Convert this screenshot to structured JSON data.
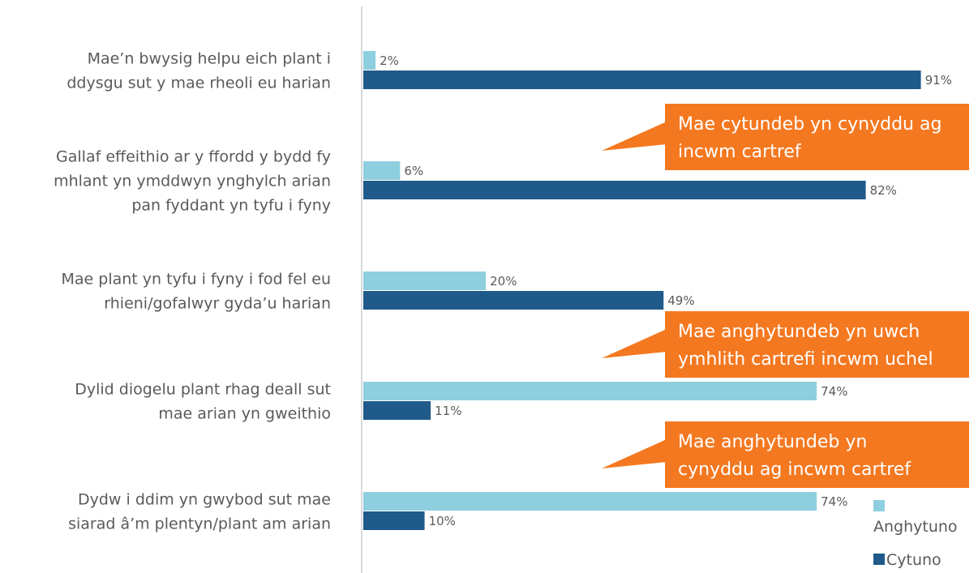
{
  "chart_data": {
    "type": "bar",
    "orientation": "horizontal",
    "categories": [
      [
        "Mae’n bwysig helpu eich plant i",
        "ddysgu sut y mae rheoli eu harian"
      ],
      [
        "Gallaf effeithio ar y ffordd y bydd fy",
        "mhlant yn ymddwyn ynghylch arian",
        "pan fyddant yn tyfu i fyny"
      ],
      [
        "Mae plant yn tyfu i fyny i fod fel eu",
        "rhieni/gofalwyr gyda’u harian"
      ],
      [
        "Dylid diogelu plant rhag deall sut",
        "mae arian yn gweithio"
      ],
      [
        "Dydw i ddim yn gwybod sut mae",
        "siarad â’m plentyn/plant am arian"
      ]
    ],
    "series": [
      {
        "name": "Anghytuno",
        "values": [
          2,
          6,
          20,
          74,
          74
        ],
        "labels": [
          "2%",
          "6%",
          "20%",
          "74%",
          "74%"
        ],
        "color": "#8ecfdf"
      },
      {
        "name": "Cytuno",
        "values": [
          91,
          82,
          49,
          11,
          10
        ],
        "labels": [
          "91%",
          "82%",
          "49%",
          "11%",
          "10%"
        ],
        "color": "#1f5a8a"
      }
    ],
    "xlim": [
      0,
      100
    ],
    "grid": false,
    "legend_position": "bottom-right",
    "callouts": [
      {
        "lines": [
          "Mae cytundeb yn cynyddu ag",
          "incwm cartref"
        ],
        "color": "#f47820"
      },
      {
        "lines": [
          "Mae anghytundeb yn uwch",
          "ymhlith cartrefi incwm uchel"
        ],
        "color": "#f47820"
      },
      {
        "lines": [
          "Mae anghytundeb yn",
          "cynyddu ag incwm cartref"
        ],
        "color": "#f47820"
      }
    ],
    "axis_color": "#cccccc"
  }
}
